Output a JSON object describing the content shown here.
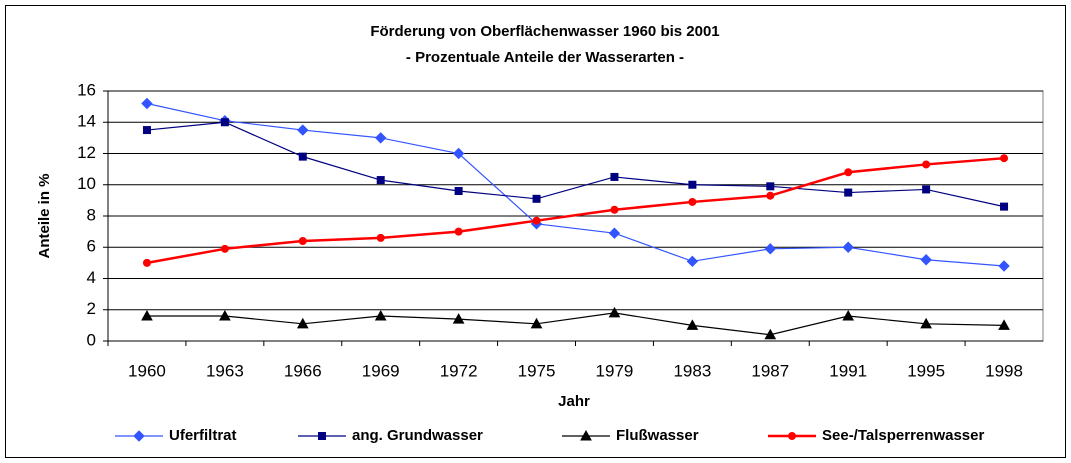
{
  "chart_data": {
    "type": "line",
    "title": "Förderung von Oberflächenwasser 1960 bis 2001",
    "subtitle": "- Prozentuale Anteile der Wasserarten -",
    "x_label": "Jahr",
    "y_label": "Anteile in %",
    "categories": [
      "1960",
      "1963",
      "1966",
      "1969",
      "1972",
      "1975",
      "1979",
      "1983",
      "1987",
      "1991",
      "1995",
      "1998"
    ],
    "series": [
      {
        "name": "Uferfiltrat",
        "color": "#3355ff",
        "marker": "diamond",
        "values": [
          15.2,
          14.1,
          13.5,
          13.0,
          12.0,
          7.5,
          6.9,
          5.1,
          5.9,
          6.0,
          5.2,
          4.8
        ]
      },
      {
        "name": "ang. Grundwasser",
        "color": "#000080",
        "marker": "square",
        "values": [
          13.5,
          14.0,
          11.8,
          10.3,
          9.6,
          9.1,
          10.5,
          10.0,
          9.9,
          9.5,
          9.7,
          8.6
        ]
      },
      {
        "name": "Flußwasser",
        "color": "#000000",
        "marker": "triangle",
        "values": [
          1.6,
          1.6,
          1.1,
          1.6,
          1.4,
          1.1,
          1.8,
          1.0,
          0.4,
          1.6,
          1.1,
          1.0
        ]
      },
      {
        "name": "See-/Talsperrenwasser",
        "color": "#ff0000",
        "marker": "circle",
        "values": [
          5.0,
          5.9,
          6.4,
          6.6,
          7.0,
          7.7,
          8.4,
          8.9,
          9.3,
          10.8,
          11.3,
          11.7
        ]
      }
    ],
    "ylim": [
      0,
      16
    ],
    "yticks": [
      0,
      2,
      4,
      6,
      8,
      10,
      12,
      14,
      16
    ],
    "grid": true,
    "legend": "bottom"
  }
}
